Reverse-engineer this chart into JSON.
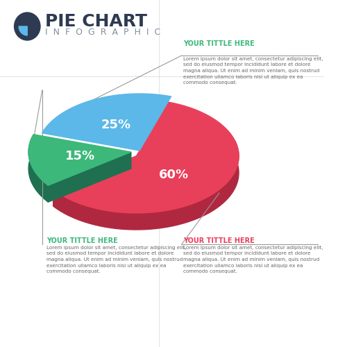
{
  "title_main": "PIE CHART",
  "title_sub": "INFOGRAPHIC",
  "slices": [
    {
      "label": "60%",
      "value": 60,
      "color": "#E8405A",
      "side_color": "#B02840"
    },
    {
      "label": "25%",
      "value": 25,
      "color": "#5BB8E8",
      "side_color": "#2E5A8E"
    },
    {
      "label": "15%",
      "value": 15,
      "color": "#3CB87A",
      "side_color": "#1E7050"
    }
  ],
  "annotations": [
    {
      "title": "YOUR TITTLE HERE",
      "title_color": "#3CB87A",
      "body": "Lorem ipsum dolor sit amet, consectetur adipiscing elit,\nsed do eiusmod tempor incididunt labore et dolore\nmagna aliqua. Ut enim ad minim veniam, quis nostrud\nexercitation ullamco laboris nisi ut aliquip ex ea\ncommodo consequat.",
      "position": "top_right"
    },
    {
      "title": "YOUR TITTLE HERE",
      "title_color": "#3CB87A",
      "body": "Lorem ipsum dolor sit amet, consectetur adipiscing elit,\nsed do eiusmod tempor incididunt labore et dolore\nmagna aliqua. Ut enim ad minim veniam, quis nostrud\nexercitation ullamco laboris nisi ut aliquip ex ea\ncommodo consequat.",
      "position": "bottom_left"
    },
    {
      "title": "YOUR TITTLE HERE",
      "title_color": "#E8405A",
      "body": "Lorem ipsum dolor sit amet, consectetur adipiscing elit,\nsed do eiusmod tempor incididunt labore et dolore\nmagna aliqua. Ut enim ad minim veniam, quis nostrud\nexercitation ullamco laboris nisi ut aliquip ex ea\ncommodo consequat.",
      "position": "bottom_right"
    }
  ],
  "bg_color": "#FFFFFF",
  "logo_circle_color": "#2D3A52",
  "logo_arc_color": "#5BB8E8",
  "label_fontsize": 13,
  "title_fontsize_main": 18,
  "title_fontsize_sub": 9,
  "annotation_title_fontsize": 7.0,
  "annotation_body_fontsize": 5.2
}
